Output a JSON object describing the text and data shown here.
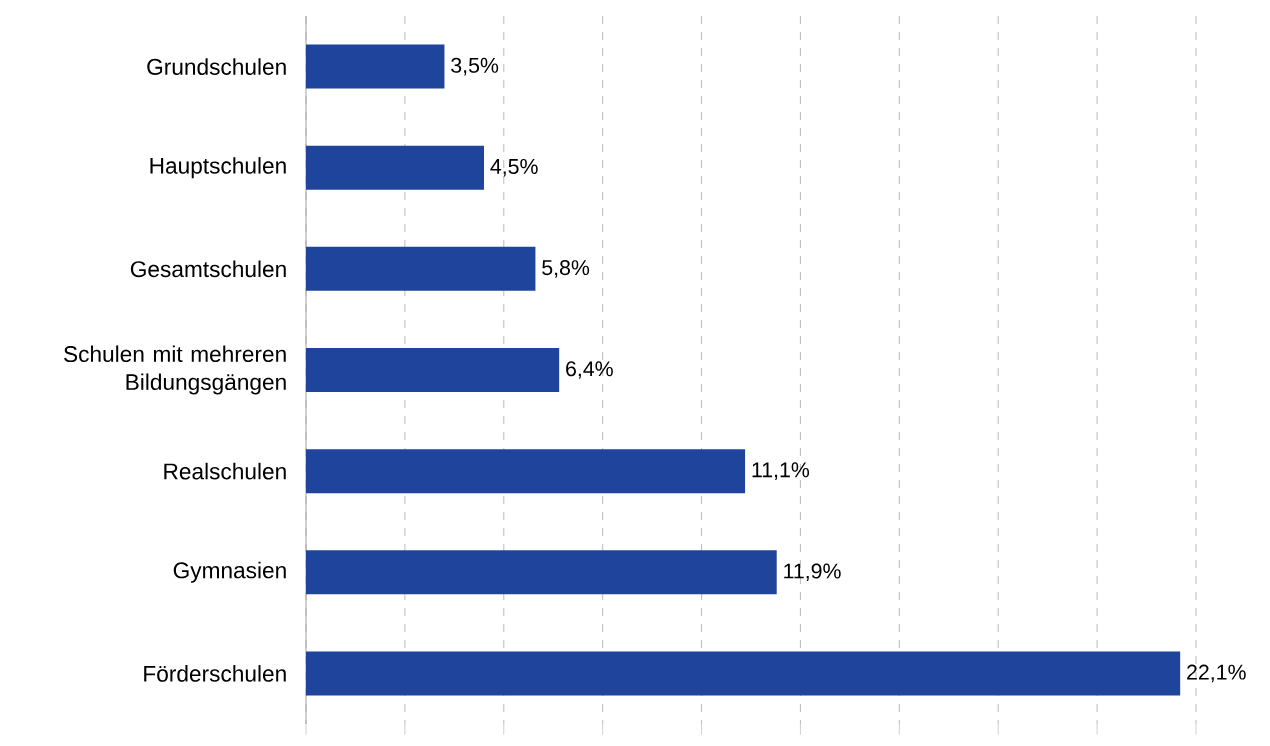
{
  "chart_data": {
    "type": "bar",
    "orientation": "horizontal",
    "categories": [
      "Grundschulen",
      "Hauptschulen",
      "Gesamtschulen",
      "Schulen mit mehreren Bildungsgängen",
      "Realschulen",
      "Gymnasien",
      "Förderschulen"
    ],
    "values": [
      3.5,
      4.5,
      5.8,
      6.4,
      11.1,
      11.9,
      22.1
    ],
    "value_labels": [
      "3,5%",
      "4,5%",
      "5,8%",
      "6,4%",
      "11,1%",
      "11,9%",
      "22,1%"
    ],
    "color": "#1f449c",
    "xlim": [
      0,
      22.5
    ],
    "xticks": [
      {
        "value": 0,
        "label": null
      },
      {
        "value": 2.5,
        "label": null
      },
      {
        "value": 5,
        "label": null
      },
      {
        "value": 7.5,
        "label": null
      },
      {
        "value": 10,
        "label": null
      },
      {
        "value": 12.5,
        "label": null
      },
      {
        "value": 15,
        "label": null
      },
      {
        "value": 17.5,
        "label": null
      },
      {
        "value": 20,
        "label": null
      },
      {
        "value": 22.5,
        "label": null
      }
    ],
    "grid": "x",
    "tick_labels": "y"
  }
}
